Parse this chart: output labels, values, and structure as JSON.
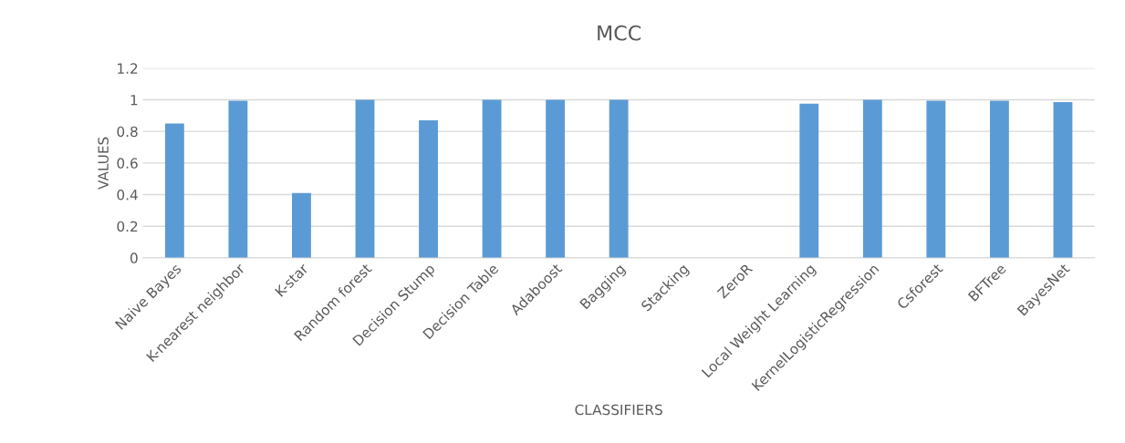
{
  "chart_data": {
    "type": "bar",
    "title": "MCC",
    "xlabel": "CLASSIFIERS",
    "ylabel": "VALUES",
    "categories": [
      "Naive Bayes",
      "K-nearest neighbor",
      "K-star",
      "Random forest",
      "Decision Stump",
      "Decision Table",
      "Adaboost",
      "Bagging",
      "Stacking",
      "ZeroR",
      "Local Weight Learning",
      "KernelLogisticRegression",
      "Csforest",
      "BFTree",
      "BayesNet"
    ],
    "values": [
      0.85,
      0.995,
      0.41,
      1,
      0.87,
      1,
      1,
      1,
      0,
      0,
      0.975,
      1,
      0.995,
      0.995,
      0.985
    ],
    "color": "#5b9bd5",
    "ylim": [
      0,
      1.2
    ],
    "yticks": [
      0,
      0.2,
      0.4,
      0.6,
      0.8,
      1,
      1.2
    ],
    "grid": "y"
  }
}
